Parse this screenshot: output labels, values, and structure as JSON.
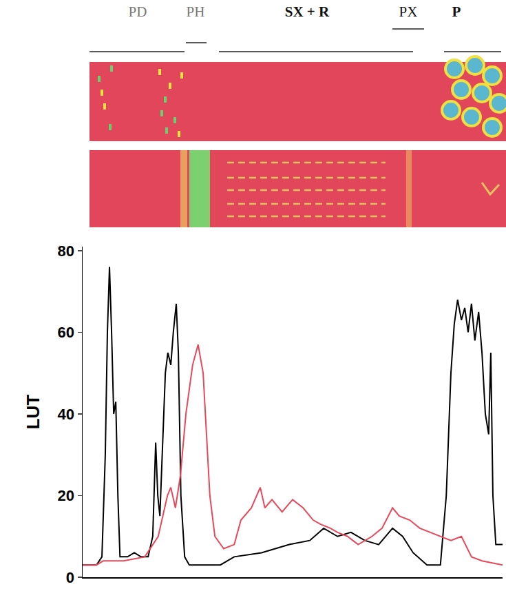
{
  "chart_data": {
    "type": "line",
    "region_labels": [
      "PD",
      "PH",
      "SX + R",
      "PX",
      "P"
    ],
    "y_label": "LUT",
    "xlim": [
      0,
      100
    ],
    "ylim": [
      0,
      81
    ],
    "yticks": [
      0,
      20,
      40,
      60,
      80
    ],
    "tick_labels": "y",
    "grid": false,
    "series": [
      {
        "color": "#000000",
        "x": [
          0,
          3.3,
          4.6,
          5.4,
          5.9,
          6.4,
          6.9,
          7.4,
          7.9,
          8.4,
          8.9,
          10.7,
          12.3,
          13.9,
          15.6,
          16.7,
          17.4,
          17.9,
          18.4,
          19.0,
          19.7,
          20.3,
          21.0,
          21.6,
          22.3,
          22.8,
          23.4,
          24.3,
          25.4,
          32.8,
          36.1,
          42.6,
          49.2,
          54.1,
          57.4,
          60.7,
          63.9,
          67.2,
          70.5,
          73.8,
          76.2,
          78.7,
          82.0,
          85.2,
          86.6,
          87.7,
          88.5,
          89.3,
          90.2,
          91.0,
          91.8,
          92.6,
          93.4,
          94.3,
          95.1,
          95.9,
          96.7,
          97.2,
          97.7,
          98.4,
          100
        ],
        "values": [
          3,
          3,
          5,
          30,
          60,
          76,
          60,
          40,
          43,
          20,
          5,
          5,
          6,
          5,
          5,
          10,
          33,
          20,
          15,
          30,
          50,
          55,
          52,
          60,
          67,
          55,
          20,
          5,
          3,
          3,
          5,
          6,
          8,
          9,
          12,
          10,
          11,
          9,
          8,
          12,
          10,
          6,
          3,
          3,
          20,
          50,
          62,
          68,
          63,
          66,
          60,
          67,
          58,
          65,
          55,
          40,
          35,
          55,
          20,
          8,
          8
        ]
      },
      {
        "color": "#e8485a",
        "x": [
          0,
          3.3,
          4.9,
          9.8,
          14.8,
          18.0,
          20.2,
          21.0,
          22.1,
          23.3,
          24.6,
          26.2,
          27.5,
          28.7,
          29.5,
          30.3,
          31.5,
          33.6,
          36.1,
          37.7,
          40.2,
          42.3,
          43.4,
          45.1,
          47.5,
          50.0,
          52.5,
          54.9,
          56.6,
          59.0,
          60.7,
          63.1,
          65.6,
          68.9,
          71.3,
          73.8,
          75.4,
          77.9,
          80.3,
          82.8,
          85.2,
          87.7,
          90.2,
          92.6,
          95.1,
          100
        ],
        "values": [
          3,
          3,
          4,
          4,
          5,
          10,
          20,
          22,
          17,
          25,
          40,
          52,
          57,
          50,
          35,
          20,
          10,
          7,
          8,
          14,
          17,
          22,
          17,
          19,
          16,
          19,
          17,
          14,
          13,
          12,
          11,
          10,
          8,
          10,
          12,
          17,
          15,
          14,
          12,
          11,
          10,
          9,
          10,
          5,
          4,
          3
        ]
      }
    ]
  }
}
